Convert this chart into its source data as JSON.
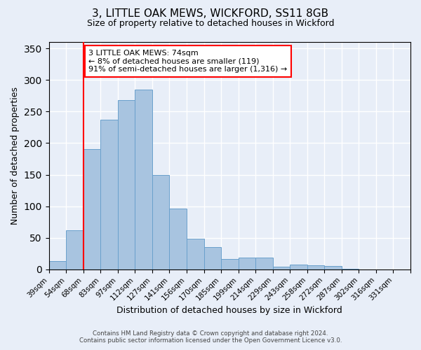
{
  "title": "3, LITTLE OAK MEWS, WICKFORD, SS11 8GB",
  "subtitle": "Size of property relative to detached houses in Wickford",
  "xlabel": "Distribution of detached houses by size in Wickford",
  "ylabel": "Number of detached properties",
  "footer_line1": "Contains HM Land Registry data © Crown copyright and database right 2024.",
  "footer_line2": "Contains public sector information licensed under the Open Government Licence v3.0.",
  "bin_labels": [
    "39sqm",
    "54sqm",
    "68sqm",
    "83sqm",
    "97sqm",
    "112sqm",
    "127sqm",
    "141sqm",
    "156sqm",
    "170sqm",
    "185sqm",
    "199sqm",
    "214sqm",
    "229sqm",
    "243sqm",
    "258sqm",
    "272sqm",
    "287sqm",
    "302sqm",
    "316sqm",
    "331sqm"
  ],
  "bar_heights": [
    13,
    62,
    191,
    237,
    268,
    285,
    149,
    96,
    49,
    35,
    17,
    19,
    19,
    4,
    8,
    6,
    5,
    1,
    0,
    0,
    0
  ],
  "bar_color": "#a8c4e0",
  "bar_edgecolor": "#6aa0cc",
  "vline_x": 2,
  "vline_color": "red",
  "annotation_text": "3 LITTLE OAK MEWS: 74sqm\n← 8% of detached houses are smaller (119)\n91% of semi-detached houses are larger (1,316) →",
  "annotation_box_edgecolor": "red",
  "annotation_box_facecolor": "white",
  "ylim": [
    0,
    360
  ],
  "yticks": [
    0,
    50,
    100,
    150,
    200,
    250,
    300,
    350
  ],
  "background_color": "#e8eef8",
  "plot_bg_color": "#e8eef8"
}
